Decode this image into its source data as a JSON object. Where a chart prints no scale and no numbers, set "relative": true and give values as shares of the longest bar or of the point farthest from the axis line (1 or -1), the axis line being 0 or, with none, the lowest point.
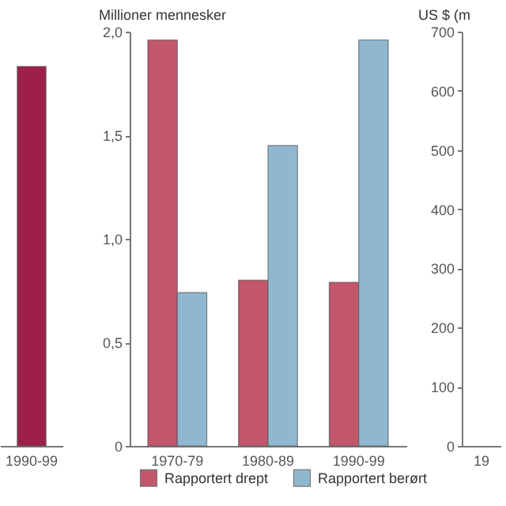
{
  "chart_data": [
    {
      "type": "bar",
      "relative": true,
      "categories": [
        "1990-99"
      ],
      "values": [
        1
      ],
      "color": "#9e1f4a"
    },
    {
      "type": "bar",
      "ylabel": "Millioner mennesker",
      "categories": [
        "1970-79",
        "1980-89",
        "1990-99"
      ],
      "series": [
        {
          "name": "Rapportert drept",
          "color": "#c2566b",
          "values": [
            1.96,
            0.8,
            0.79
          ]
        },
        {
          "name": "Rapportert berørt",
          "color": "#8fb8d0",
          "values": [
            0.74,
            1.45,
            1.96
          ]
        }
      ],
      "ylim": [
        0,
        2
      ],
      "yticks": [
        0,
        {
          "value": 0.5,
          "label": "0,5"
        },
        {
          "value": 1,
          "label": "1,0"
        },
        {
          "value": 1.5,
          "label": "1,5"
        },
        {
          "value": 2,
          "label": "2,0"
        }
      ],
      "legend": "bottom"
    },
    {
      "type": "bar",
      "ylabel": "US $ (m",
      "categories": [
        "19"
      ],
      "values": [
        null
      ],
      "ylim": [
        0,
        700
      ],
      "yticks": [
        0,
        100,
        200,
        300,
        400,
        500,
        600,
        700
      ]
    }
  ]
}
